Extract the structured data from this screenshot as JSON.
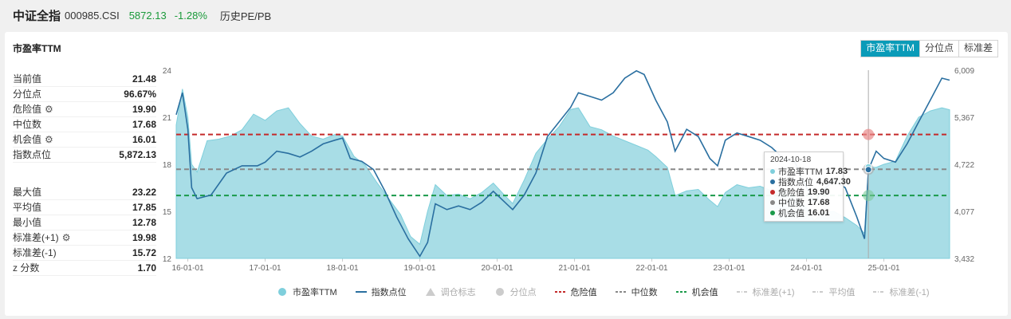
{
  "header": {
    "name": "中证全指",
    "code": "000985.CSI",
    "price": "5872.13",
    "change": "-1.28%",
    "history_link": "历史PE/PB"
  },
  "card": {
    "title": "市盈率TTM",
    "tabs": [
      {
        "label": "市盈率TTM",
        "active": true
      },
      {
        "label": "分位点",
        "active": false
      },
      {
        "label": "标准差",
        "active": false
      }
    ]
  },
  "stats_top": [
    {
      "label": "当前值",
      "value": "21.48",
      "gear": false
    },
    {
      "label": "分位点",
      "value": "96.67%",
      "gear": false
    },
    {
      "label": "危险值",
      "value": "19.90",
      "gear": true
    },
    {
      "label": "中位数",
      "value": "17.68",
      "gear": false
    },
    {
      "label": "机会值",
      "value": "16.01",
      "gear": true
    },
    {
      "label": "指数点位",
      "value": "5,872.13",
      "gear": false
    }
  ],
  "stats_bottom": [
    {
      "label": "最大值",
      "value": "23.22",
      "gear": false
    },
    {
      "label": "平均值",
      "value": "17.85",
      "gear": false
    },
    {
      "label": "最小值",
      "value": "12.78",
      "gear": false
    },
    {
      "label": "标准差(+1)",
      "value": "19.98",
      "gear": true
    },
    {
      "label": "标准差(-1)",
      "value": "15.72",
      "gear": false
    },
    {
      "label": "z 分数",
      "value": "1.70",
      "gear": false
    }
  ],
  "tooltip": {
    "date": "2024-10-18",
    "rows": [
      {
        "label": "市盈率TTM",
        "value": "17.83",
        "color": "#7fcfdc"
      },
      {
        "label": "指数点位",
        "value": "4,647.30",
        "color": "#2a6fa0"
      },
      {
        "label": "危险值",
        "value": "19.90",
        "color": "#c42a2a"
      },
      {
        "label": "中位数",
        "value": "17.68",
        "color": "#888888"
      },
      {
        "label": "机会值",
        "value": "16.01",
        "color": "#1a9a4a"
      }
    ]
  },
  "legend": [
    {
      "label": "市盈率TTM",
      "kind": "dot",
      "color": "#7fcfdc",
      "active": true
    },
    {
      "label": "指数点位",
      "kind": "line",
      "color": "#2a6fa0",
      "active": true
    },
    {
      "label": "调仓标志",
      "kind": "triangle",
      "color": "#cccccc",
      "active": false
    },
    {
      "label": "分位点",
      "kind": "dot",
      "color": "#cccccc",
      "active": false
    },
    {
      "label": "危险值",
      "kind": "dash",
      "color": "#c42a2a",
      "active": true
    },
    {
      "label": "中位数",
      "kind": "dash",
      "color": "#888888",
      "active": true
    },
    {
      "label": "机会值",
      "kind": "dash",
      "color": "#1a9a4a",
      "active": true
    },
    {
      "label": "标准差(+1)",
      "kind": "dashdot",
      "color": "#cccccc",
      "active": false
    },
    {
      "label": "平均值",
      "kind": "dashdot",
      "color": "#cccccc",
      "active": false
    },
    {
      "label": "标准差(-1)",
      "kind": "dashdot",
      "color": "#cccccc",
      "active": false
    }
  ],
  "chart_data": {
    "type": "area",
    "x_ticks": [
      "16-01-01",
      "17-01-01",
      "18-01-01",
      "19-01-01",
      "20-01-01",
      "21-01-01",
      "22-01-01",
      "23-01-01",
      "24-01-01",
      "25-01-01"
    ],
    "x_range": [
      2015.85,
      2025.85
    ],
    "y_left": {
      "ticks": [
        "24",
        "21",
        "18",
        "15",
        "12"
      ],
      "range": [
        12,
        24
      ]
    },
    "y_right": {
      "ticks": [
        "6,009",
        "5,367",
        "4,722",
        "4,077",
        "3,432"
      ],
      "range": [
        3432,
        6009
      ]
    },
    "ref_lines": {
      "danger": 19.9,
      "median": 17.68,
      "opportunity": 16.01
    },
    "highlight_x": 2024.8,
    "series": [
      {
        "name": "市盈率TTM",
        "axis": "left",
        "points": [
          [
            2015.85,
            20.5
          ],
          [
            2015.93,
            22.8
          ],
          [
            2016.0,
            21.0
          ],
          [
            2016.05,
            18.0
          ],
          [
            2016.12,
            17.5
          ],
          [
            2016.25,
            19.5
          ],
          [
            2016.4,
            19.6
          ],
          [
            2016.55,
            19.8
          ],
          [
            2016.7,
            20.2
          ],
          [
            2016.85,
            21.2
          ],
          [
            2017.0,
            20.8
          ],
          [
            2017.15,
            21.4
          ],
          [
            2017.3,
            21.6
          ],
          [
            2017.45,
            20.6
          ],
          [
            2017.6,
            19.8
          ],
          [
            2017.75,
            19.6
          ],
          [
            2017.9,
            19.9
          ],
          [
            2018.0,
            19.8
          ],
          [
            2018.15,
            18.5
          ],
          [
            2018.3,
            17.9
          ],
          [
            2018.45,
            16.8
          ],
          [
            2018.6,
            15.8
          ],
          [
            2018.75,
            14.8
          ],
          [
            2018.88,
            13.4
          ],
          [
            2019.0,
            12.9
          ],
          [
            2019.1,
            15.0
          ],
          [
            2019.2,
            16.7
          ],
          [
            2019.35,
            16.0
          ],
          [
            2019.5,
            16.1
          ],
          [
            2019.65,
            15.8
          ],
          [
            2019.8,
            16.2
          ],
          [
            2019.95,
            16.8
          ],
          [
            2020.1,
            16.0
          ],
          [
            2020.2,
            15.5
          ],
          [
            2020.35,
            17.0
          ],
          [
            2020.5,
            18.7
          ],
          [
            2020.65,
            19.6
          ],
          [
            2020.8,
            20.4
          ],
          [
            2020.95,
            21.5
          ],
          [
            2021.05,
            21.6
          ],
          [
            2021.2,
            20.4
          ],
          [
            2021.35,
            20.2
          ],
          [
            2021.5,
            19.8
          ],
          [
            2021.65,
            19.5
          ],
          [
            2021.8,
            19.2
          ],
          [
            2021.95,
            18.9
          ],
          [
            2022.05,
            18.5
          ],
          [
            2022.2,
            17.8
          ],
          [
            2022.3,
            16.0
          ],
          [
            2022.45,
            16.3
          ],
          [
            2022.6,
            16.4
          ],
          [
            2022.75,
            15.7
          ],
          [
            2022.85,
            15.3
          ],
          [
            2022.95,
            16.2
          ],
          [
            2023.1,
            16.7
          ],
          [
            2023.25,
            16.5
          ],
          [
            2023.4,
            16.6
          ],
          [
            2023.55,
            16.3
          ],
          [
            2023.7,
            16.4
          ],
          [
            2023.85,
            15.9
          ],
          [
            2024.0,
            15.2
          ],
          [
            2024.1,
            14.4
          ],
          [
            2024.2,
            14.9
          ],
          [
            2024.35,
            15.0
          ],
          [
            2024.5,
            14.6
          ],
          [
            2024.65,
            14.1
          ],
          [
            2024.75,
            13.6
          ],
          [
            2024.8,
            17.83
          ],
          [
            2024.9,
            17.8
          ],
          [
            2025.0,
            18.0
          ],
          [
            2025.15,
            18.2
          ],
          [
            2025.3,
            19.8
          ],
          [
            2025.45,
            21.0
          ],
          [
            2025.6,
            21.4
          ],
          [
            2025.75,
            21.6
          ],
          [
            2025.85,
            21.48
          ]
        ]
      },
      {
        "name": "指数点位",
        "axis": "right",
        "points": [
          [
            2015.85,
            5400
          ],
          [
            2015.93,
            5700
          ],
          [
            2016.0,
            5200
          ],
          [
            2016.05,
            4400
          ],
          [
            2016.12,
            4250
          ],
          [
            2016.3,
            4300
          ],
          [
            2016.5,
            4600
          ],
          [
            2016.7,
            4700
          ],
          [
            2016.9,
            4700
          ],
          [
            2017.0,
            4750
          ],
          [
            2017.15,
            4900
          ],
          [
            2017.3,
            4870
          ],
          [
            2017.45,
            4820
          ],
          [
            2017.6,
            4900
          ],
          [
            2017.75,
            5000
          ],
          [
            2017.9,
            5050
          ],
          [
            2018.0,
            5080
          ],
          [
            2018.1,
            4800
          ],
          [
            2018.25,
            4760
          ],
          [
            2018.4,
            4650
          ],
          [
            2018.55,
            4350
          ],
          [
            2018.7,
            4000
          ],
          [
            2018.85,
            3700
          ],
          [
            2019.0,
            3460
          ],
          [
            2019.1,
            3650
          ],
          [
            2019.2,
            4180
          ],
          [
            2019.35,
            4100
          ],
          [
            2019.5,
            4150
          ],
          [
            2019.65,
            4100
          ],
          [
            2019.8,
            4200
          ],
          [
            2019.95,
            4350
          ],
          [
            2020.1,
            4200
          ],
          [
            2020.2,
            4100
          ],
          [
            2020.35,
            4300
          ],
          [
            2020.5,
            4600
          ],
          [
            2020.65,
            5100
          ],
          [
            2020.8,
            5300
          ],
          [
            2020.95,
            5500
          ],
          [
            2021.05,
            5700
          ],
          [
            2021.2,
            5650
          ],
          [
            2021.35,
            5600
          ],
          [
            2021.5,
            5700
          ],
          [
            2021.65,
            5900
          ],
          [
            2021.8,
            6000
          ],
          [
            2021.9,
            5950
          ],
          [
            2022.05,
            5600
          ],
          [
            2022.2,
            5300
          ],
          [
            2022.3,
            4900
          ],
          [
            2022.45,
            5200
          ],
          [
            2022.6,
            5100
          ],
          [
            2022.75,
            4800
          ],
          [
            2022.85,
            4700
          ],
          [
            2022.95,
            5050
          ],
          [
            2023.1,
            5150
          ],
          [
            2023.25,
            5100
          ],
          [
            2023.4,
            5050
          ],
          [
            2023.55,
            4950
          ],
          [
            2023.7,
            4800
          ],
          [
            2023.85,
            4750
          ],
          [
            2024.0,
            4400
          ],
          [
            2024.1,
            4200
          ],
          [
            2024.2,
            4350
          ],
          [
            2024.35,
            4500
          ],
          [
            2024.5,
            4400
          ],
          [
            2024.65,
            4000
          ],
          [
            2024.75,
            3700
          ],
          [
            2024.8,
            4647.3
          ],
          [
            2024.9,
            4900
          ],
          [
            2025.0,
            4800
          ],
          [
            2025.15,
            4750
          ],
          [
            2025.3,
            5000
          ],
          [
            2025.45,
            5300
          ],
          [
            2025.6,
            5600
          ],
          [
            2025.75,
            5900
          ],
          [
            2025.85,
            5872.13
          ]
        ]
      }
    ]
  }
}
